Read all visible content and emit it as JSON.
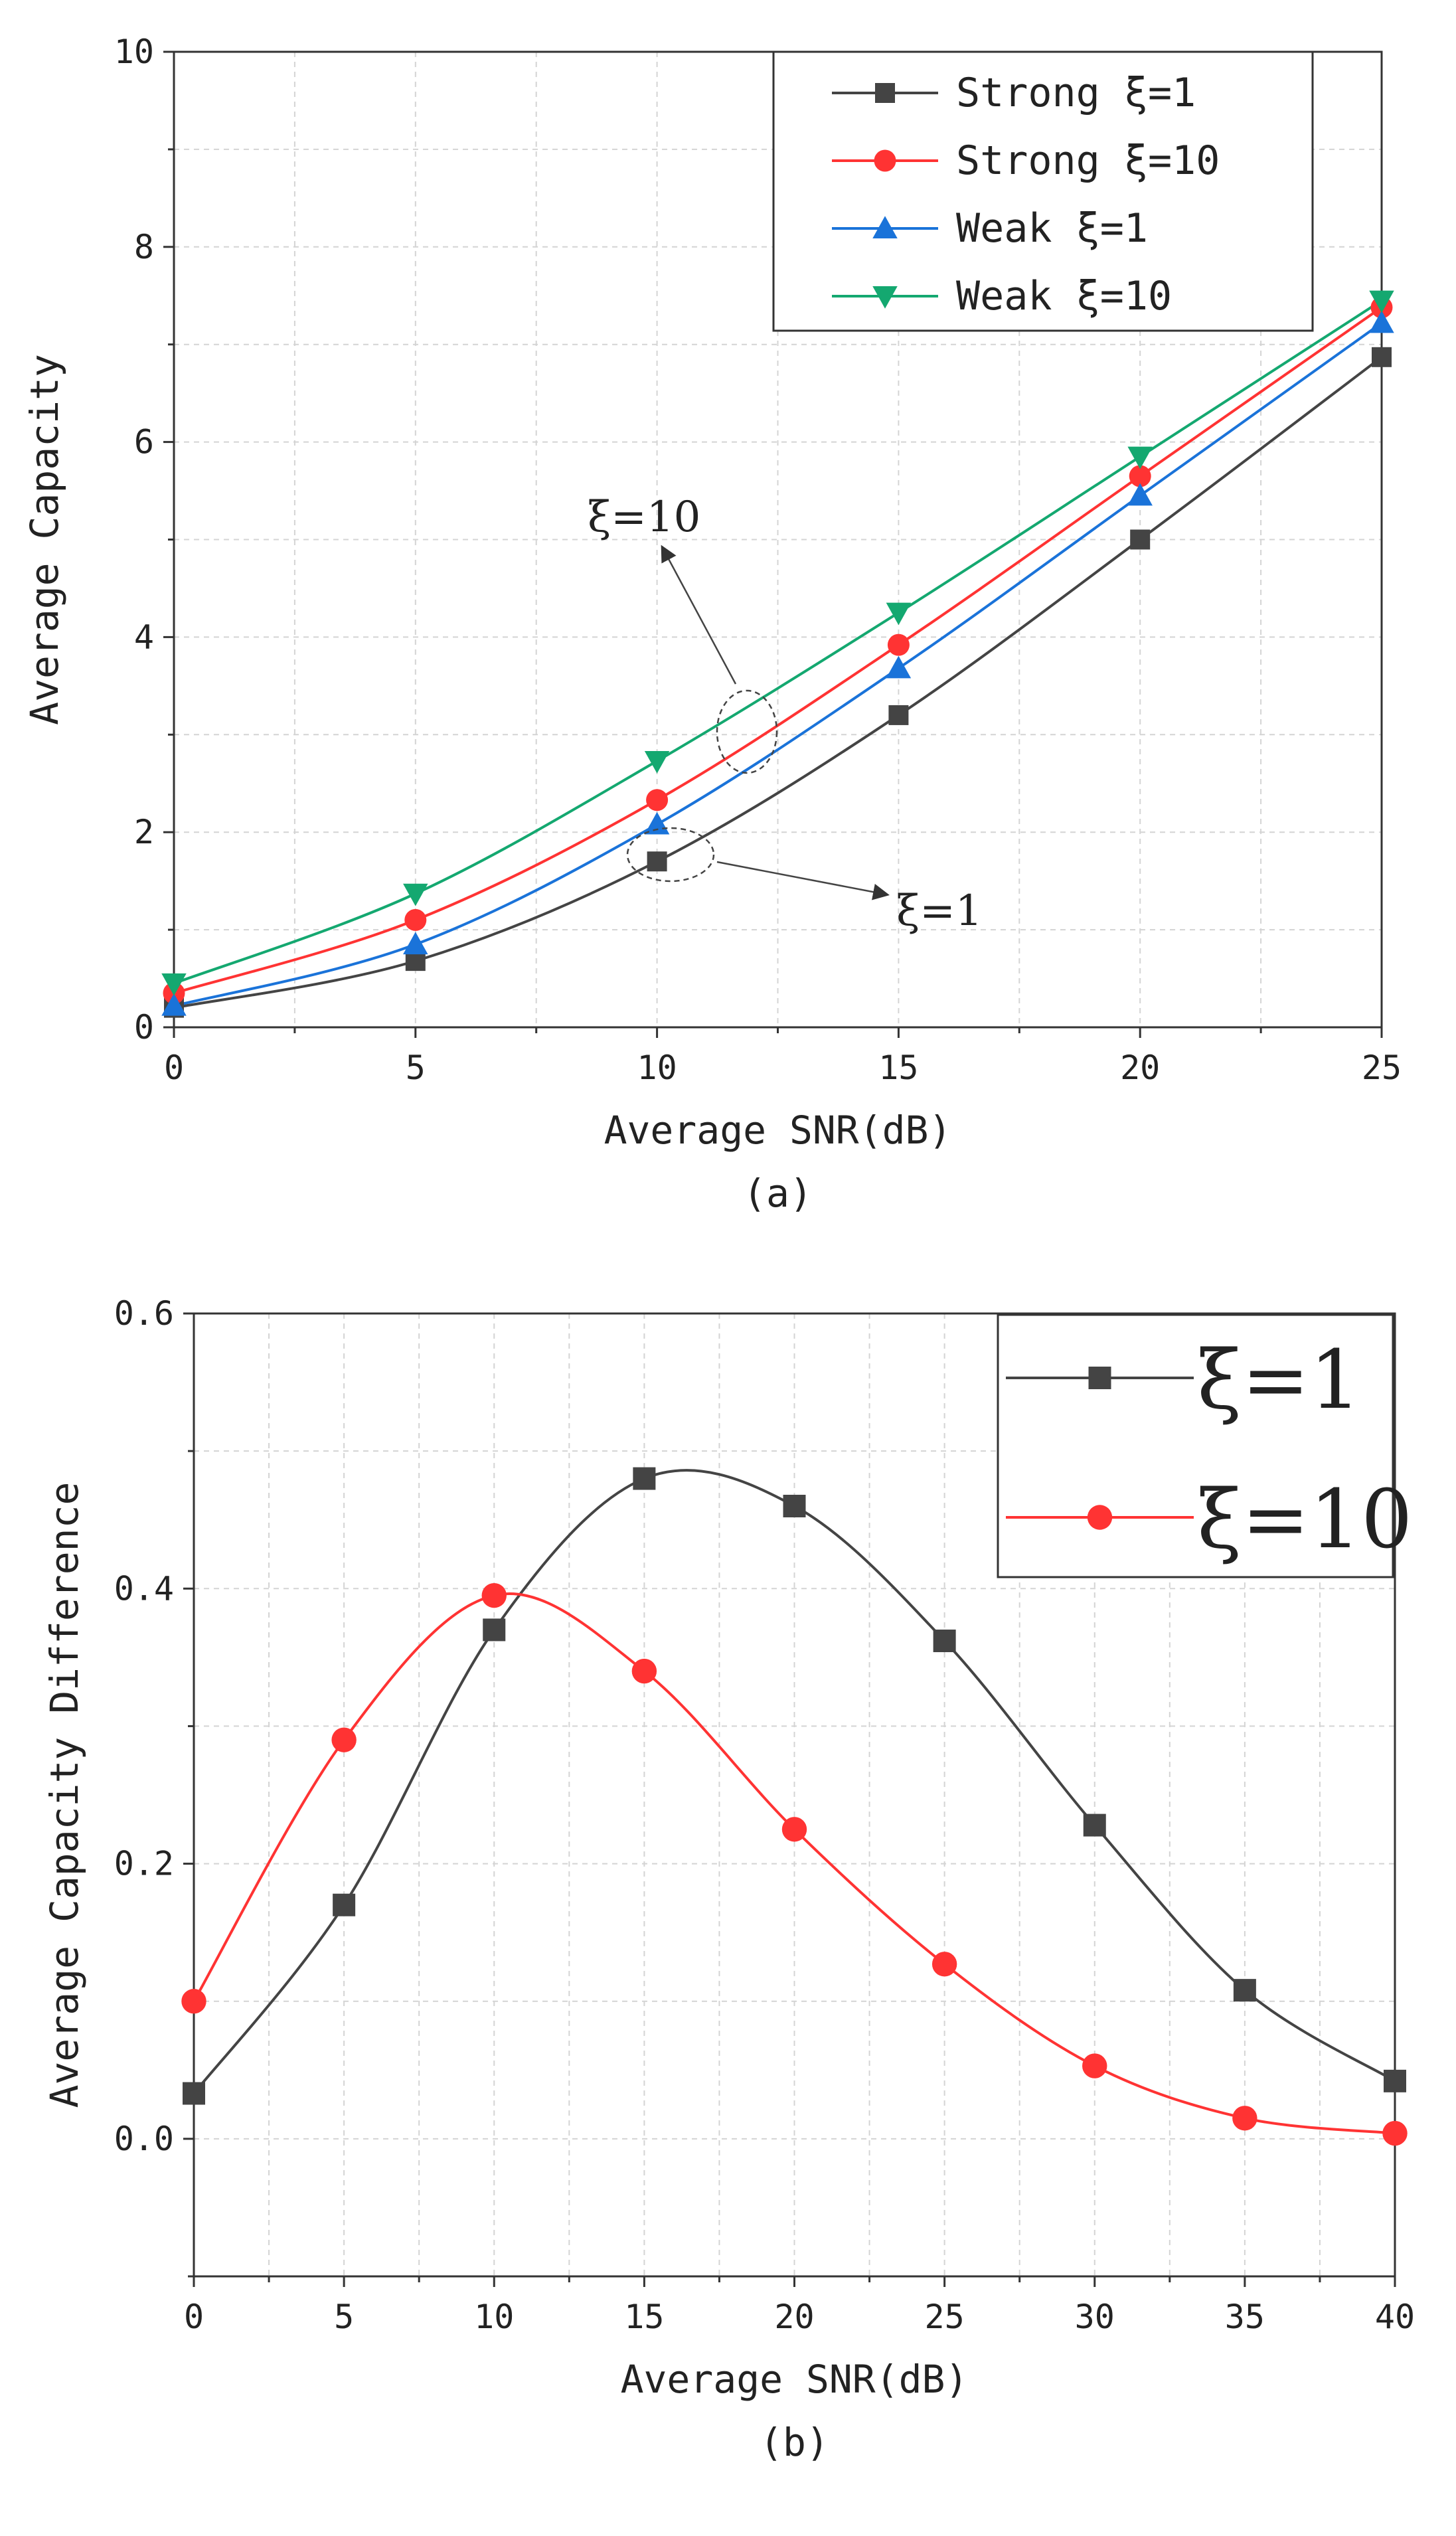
{
  "chart_data": [
    {
      "id": "a",
      "type": "line",
      "caption": "(a)",
      "xlabel": "Average SNR(dB)",
      "ylabel": "Average Capacity",
      "xlim": [
        0,
        25
      ],
      "ylim": [
        0,
        10
      ],
      "xticks": [
        0,
        5,
        10,
        15,
        20,
        25
      ],
      "yticks": [
        0,
        2,
        4,
        6,
        8,
        10
      ],
      "x": [
        0,
        5,
        10,
        15,
        20,
        25
      ],
      "grid": true,
      "legend": "top-right",
      "series": [
        {
          "name": "Strong ξ=1",
          "color": "#444444",
          "marker": "square",
          "values": [
            0.2,
            0.68,
            1.7,
            3.2,
            5.0,
            6.87
          ]
        },
        {
          "name": "Strong ξ=10",
          "color": "#ff3333",
          "marker": "circle",
          "values": [
            0.35,
            1.1,
            2.33,
            3.92,
            5.65,
            7.38
          ]
        },
        {
          "name": "Weak ξ=1",
          "color": "#1a73d9",
          "marker": "triangle-up",
          "values": [
            0.22,
            0.85,
            2.08,
            3.68,
            5.45,
            7.22
          ]
        },
        {
          "name": "Weak ξ=10",
          "color": "#14a870",
          "marker": "triangle-down",
          "values": [
            0.45,
            1.37,
            2.73,
            4.25,
            5.85,
            7.45
          ]
        }
      ],
      "annotations": [
        {
          "text": "ξ=10"
        },
        {
          "text": "ξ=1"
        }
      ]
    },
    {
      "id": "b",
      "type": "line",
      "caption": "(b)",
      "xlabel": "Average SNR(dB)",
      "ylabel": "Average Capacity Difference",
      "xlim": [
        0,
        40
      ],
      "ylim": [
        -0.1,
        0.6
      ],
      "xticks": [
        0,
        5,
        10,
        15,
        20,
        25,
        30,
        35,
        40
      ],
      "yticks": [
        0.0,
        0.2,
        0.4,
        0.6
      ],
      "ytick_labels": [
        "0.0",
        "0.2",
        "0.4",
        "0.6"
      ],
      "x": [
        0,
        5,
        10,
        15,
        20,
        25,
        30,
        35,
        40
      ],
      "grid": true,
      "legend": "top-right",
      "series": [
        {
          "name": "ξ=1",
          "color": "#444444",
          "marker": "square",
          "values": [
            0.033,
            0.17,
            0.37,
            0.48,
            0.46,
            0.362,
            0.228,
            0.108,
            0.042
          ]
        },
        {
          "name": "ξ=10",
          "color": "#ff3333",
          "marker": "circle",
          "values": [
            0.1,
            0.29,
            0.395,
            0.34,
            0.225,
            0.127,
            0.053,
            0.015,
            0.004
          ]
        }
      ]
    }
  ]
}
